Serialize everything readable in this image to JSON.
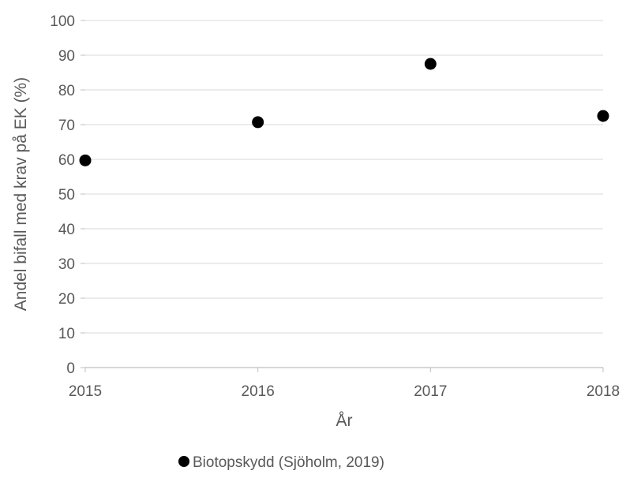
{
  "chart_data": {
    "type": "scatter",
    "title": "",
    "xlabel": "År",
    "ylabel": "Andel bifall med krav på EK (%)",
    "xlim": [
      2015,
      2018
    ],
    "ylim": [
      0,
      100
    ],
    "x_ticks": [
      "2015",
      "2016",
      "2017",
      "2018"
    ],
    "y_ticks": [
      "0",
      "10",
      "20",
      "30",
      "40",
      "50",
      "60",
      "70",
      "80",
      "90",
      "100"
    ],
    "grid": "horizontal",
    "legend_position": "bottom",
    "series": [
      {
        "name": "Biotopskydd (Sjöholm, 2019)",
        "color": "#000000",
        "marker": "circle",
        "points": [
          {
            "x": 2015,
            "y": 59.7
          },
          {
            "x": 2016,
            "y": 70.7
          },
          {
            "x": 2017,
            "y": 87.5
          },
          {
            "x": 2018,
            "y": 72.5
          }
        ]
      }
    ]
  }
}
